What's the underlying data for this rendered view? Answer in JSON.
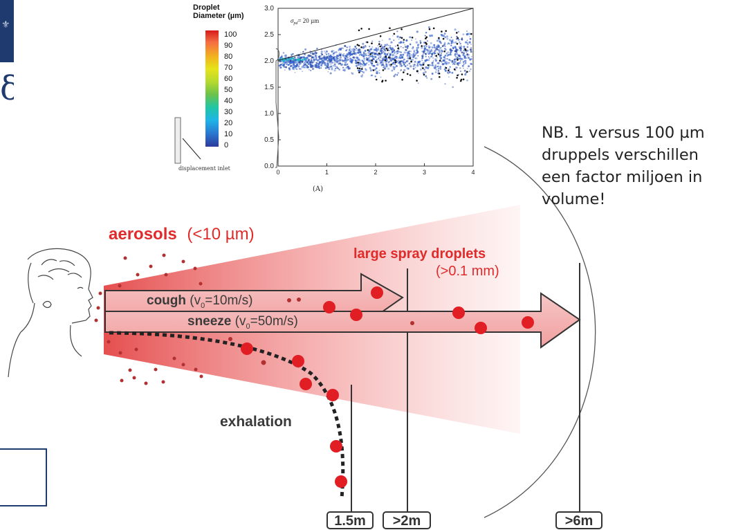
{
  "inset": {
    "legend_title": [
      "Droplet",
      "Diameter (µm)"
    ],
    "colorbar_ticks": [
      "100",
      "90",
      "80",
      "70",
      "60",
      "50",
      "40",
      "30",
      "20",
      "10",
      "0"
    ],
    "annotation": "σ",
    "annotation_sub": "pd",
    "annotation_rest": "= 20 µm",
    "caption": "(A)",
    "inlet_label": "displacement inlet",
    "y_ticks": [
      "3.0",
      "2.5",
      "2.0",
      "1.5",
      "1.0",
      "0.5",
      "0.0"
    ],
    "x_ticks": [
      "0",
      "1",
      "2",
      "3",
      "4"
    ]
  },
  "note": {
    "lines": [
      "NB. 1 versus 100 µm",
      "druppels verschillen",
      "een factor miljoen in",
      "volume!"
    ]
  },
  "diagram": {
    "aerosols_label": "aerosols",
    "aerosols_size": "(<10 µm)",
    "spray_label": "large spray droplets",
    "spray_size": "(>0.1 mm)",
    "cough_word": "cough",
    "cough_param": "(v",
    "cough_sub": "0",
    "cough_rest": "=10m/s)",
    "sneeze_word": "sneeze",
    "sneeze_param": "(v",
    "sneeze_sub": "0",
    "sneeze_rest": "=50m/s)",
    "exhalation_label": "exhalation",
    "distances": [
      "1.5m",
      ">2m",
      ">6m"
    ]
  },
  "colors": {
    "cone_red": "#e23b3b",
    "droplet_red": "#e01e24",
    "navy": "#1e3a6e",
    "scatter_blue": "#3560c8"
  }
}
